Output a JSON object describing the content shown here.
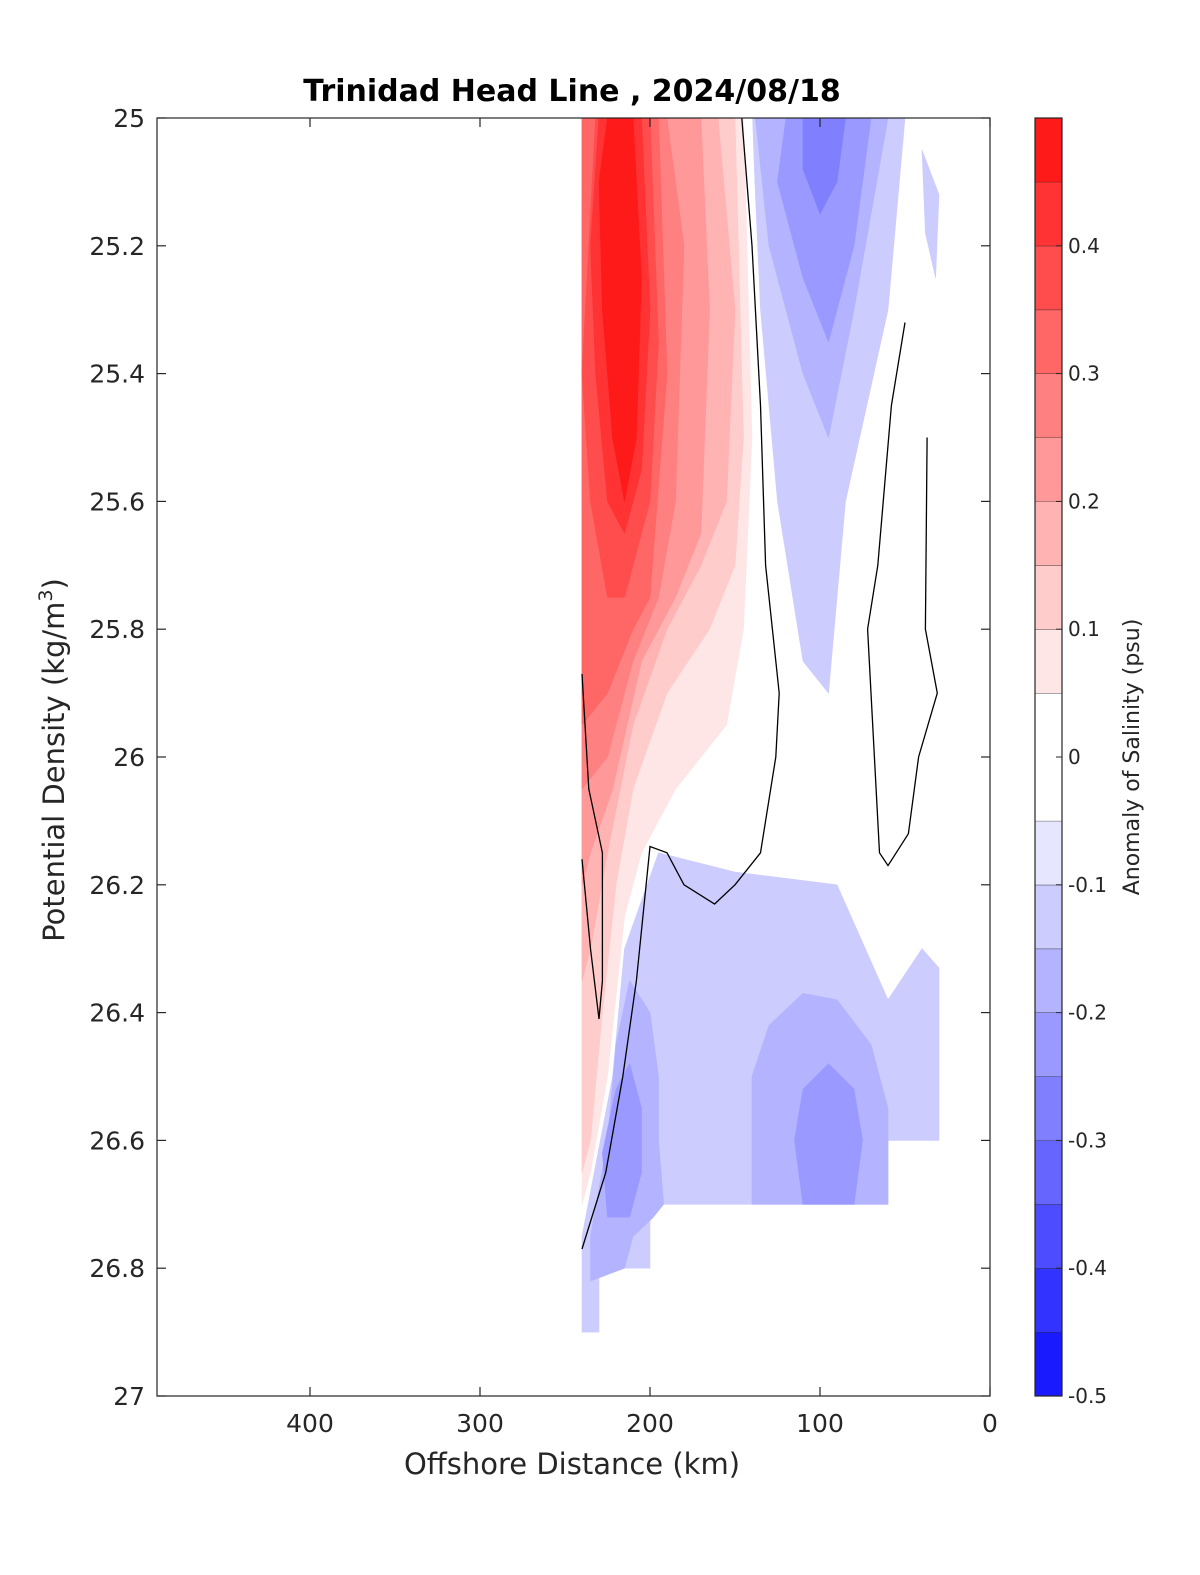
{
  "chart_data": {
    "type": "contour",
    "title": "Trinidad Head Line , 2024/08/18",
    "xlabel": "Offshore Distance (km)",
    "ylabel_main": "Potential Density (kg/m",
    "ylabel_sup": "3",
    "ylabel_close": ")",
    "xlim": [
      490,
      0
    ],
    "ylim": [
      25,
      27
    ],
    "xticks": [
      "400",
      "300",
      "200",
      "100",
      "0"
    ],
    "xtick_values": [
      400,
      300,
      200,
      100,
      0
    ],
    "yticks": [
      "25",
      "25.2",
      "25.4",
      "25.6",
      "25.8",
      "26",
      "26.2",
      "26.4",
      "26.6",
      "26.8",
      "27"
    ],
    "ytick_values": [
      25,
      25.2,
      25.4,
      25.6,
      25.8,
      26,
      26.2,
      26.4,
      26.6,
      26.8,
      27
    ],
    "colorbar": {
      "label": "Anomaly of Salinity (psu)",
      "range": [
        -0.5,
        0.5
      ],
      "ticks": [
        "0.4",
        "0.3",
        "0.2",
        "0.1",
        "0",
        "-0.1",
        "-0.2",
        "-0.3",
        "-0.4",
        "-0.5"
      ],
      "tick_values": [
        0.4,
        0.3,
        0.2,
        0.1,
        0,
        -0.1,
        -0.2,
        -0.3,
        -0.4,
        -0.5
      ],
      "levels": [
        -0.5,
        -0.45,
        -0.4,
        -0.35,
        -0.3,
        -0.25,
        -0.2,
        -0.15,
        -0.1,
        -0.05,
        0.05,
        0.1,
        0.15,
        0.2,
        0.25,
        0.3,
        0.35,
        0.4,
        0.45,
        0.5
      ],
      "colors": [
        "#0000ff",
        "#1a1aff",
        "#3333ff",
        "#4d4dff",
        "#6666ff",
        "#8080ff",
        "#9999ff",
        "#b3b3ff",
        "#ccccff",
        "#e6e6ff",
        "#ffffff",
        "#ffe6e6",
        "#ffcccc",
        "#ffb3b3",
        "#ff9999",
        "#ff8080",
        "#ff6666",
        "#ff4d4d",
        "#ff3333",
        "#ff1a1a",
        "#ff0000"
      ]
    },
    "regions": [
      {
        "value": -0.1,
        "points": [
          [
            240,
            26.9
          ],
          [
            230,
            26.9
          ],
          [
            230,
            26.8
          ],
          [
            210,
            26.8
          ],
          [
            200,
            26.8
          ],
          [
            200,
            26.7
          ],
          [
            100,
            26.7
          ],
          [
            60,
            26.7
          ],
          [
            60,
            26.6
          ],
          [
            30,
            26.6
          ],
          [
            30,
            26.33
          ],
          [
            40,
            26.3
          ],
          [
            60,
            26.38
          ],
          [
            90,
            26.2
          ],
          [
            150,
            26.18
          ],
          [
            195,
            26.15
          ],
          [
            215,
            26.3
          ],
          [
            222,
            26.5
          ],
          [
            240,
            26.75
          ]
        ]
      },
      {
        "value": -0.15,
        "points": [
          [
            235,
            26.82
          ],
          [
            215,
            26.8
          ],
          [
            210,
            26.75
          ],
          [
            198,
            26.72
          ],
          [
            192,
            26.7
          ],
          [
            195,
            26.6
          ],
          [
            195,
            26.5
          ],
          [
            200,
            26.4
          ],
          [
            212,
            26.35
          ],
          [
            220,
            26.45
          ],
          [
            225,
            26.6
          ],
          [
            235,
            26.75
          ]
        ]
      },
      {
        "value": -0.15,
        "points": [
          [
            140,
            26.7
          ],
          [
            80,
            26.7
          ],
          [
            60,
            26.7
          ],
          [
            60,
            26.55
          ],
          [
            70,
            26.45
          ],
          [
            90,
            26.38
          ],
          [
            110,
            26.37
          ],
          [
            130,
            26.42
          ],
          [
            140,
            26.5
          ]
        ]
      },
      {
        "value": -0.2,
        "points": [
          [
            225,
            26.72
          ],
          [
            212,
            26.72
          ],
          [
            205,
            26.65
          ],
          [
            205,
            26.55
          ],
          [
            212,
            26.48
          ],
          [
            220,
            26.52
          ],
          [
            228,
            26.62
          ]
        ]
      },
      {
        "value": -0.2,
        "points": [
          [
            110,
            26.7
          ],
          [
            80,
            26.7
          ],
          [
            75,
            26.6
          ],
          [
            80,
            26.52
          ],
          [
            95,
            26.48
          ],
          [
            110,
            26.52
          ],
          [
            115,
            26.6
          ]
        ]
      },
      {
        "value": -0.1,
        "points": [
          [
            140,
            25
          ],
          [
            100,
            25
          ],
          [
            50,
            25
          ],
          [
            60,
            25.3
          ],
          [
            85,
            25.6
          ],
          [
            95,
            25.9
          ],
          [
            110,
            25.85
          ],
          [
            125,
            25.6
          ],
          [
            135,
            25.3
          ]
        ]
      },
      {
        "value": -0.15,
        "points": [
          [
            138,
            25
          ],
          [
            90,
            25
          ],
          [
            60,
            25
          ],
          [
            80,
            25.3
          ],
          [
            95,
            25.5
          ],
          [
            110,
            25.4
          ],
          [
            130,
            25.2
          ]
        ]
      },
      {
        "value": -0.2,
        "points": [
          [
            120,
            25
          ],
          [
            70,
            25
          ],
          [
            80,
            25.2
          ],
          [
            95,
            25.35
          ],
          [
            110,
            25.25
          ],
          [
            125,
            25.1
          ]
        ]
      },
      {
        "value": -0.25,
        "points": [
          [
            110,
            25
          ],
          [
            85,
            25
          ],
          [
            90,
            25.1
          ],
          [
            100,
            25.15
          ],
          [
            110,
            25.08
          ]
        ]
      },
      {
        "value": -0.1,
        "points": [
          [
            40,
            25.05
          ],
          [
            30,
            25.12
          ],
          [
            32,
            25.25
          ],
          [
            38,
            25.18
          ]
        ]
      },
      {
        "value": 0.05,
        "points": [
          [
            240,
            25
          ],
          [
            140,
            25
          ],
          [
            135,
            25.4
          ],
          [
            140,
            25.8
          ],
          [
            150,
            26
          ],
          [
            170,
            26.05
          ],
          [
            190,
            26.1
          ],
          [
            210,
            26.2
          ],
          [
            220,
            26.35
          ],
          [
            235,
            26.6
          ],
          [
            240,
            26.7
          ]
        ]
      },
      {
        "value": 0.05,
        "points": [
          [
            60,
            25.8
          ],
          [
            55,
            25.85
          ],
          [
            58,
            25.9
          ],
          [
            65,
            25.85
          ]
        ]
      },
      {
        "value": 0.1,
        "points": [
          [
            240,
            25
          ],
          [
            145,
            25
          ],
          [
            140,
            25.5
          ],
          [
            145,
            25.8
          ],
          [
            155,
            25.95
          ],
          [
            185,
            26.05
          ],
          [
            205,
            26.15
          ],
          [
            215,
            26.25
          ],
          [
            225,
            26.5
          ],
          [
            235,
            26.65
          ],
          [
            240,
            26.7
          ]
        ]
      },
      {
        "value": 0.15,
        "points": [
          [
            240,
            25
          ],
          [
            150,
            25
          ],
          [
            145,
            25.5
          ],
          [
            150,
            25.7
          ],
          [
            165,
            25.8
          ],
          [
            190,
            25.9
          ],
          [
            210,
            26.05
          ],
          [
            220,
            26.2
          ],
          [
            228,
            26.4
          ],
          [
            235,
            26.6
          ],
          [
            240,
            26.65
          ]
        ]
      },
      {
        "value": 0.2,
        "points": [
          [
            240,
            25
          ],
          [
            160,
            25
          ],
          [
            150,
            25.3
          ],
          [
            155,
            25.6
          ],
          [
            170,
            25.7
          ],
          [
            190,
            25.8
          ],
          [
            210,
            25.95
          ],
          [
            225,
            26.15
          ],
          [
            235,
            26.3
          ],
          [
            240,
            26.35
          ]
        ]
      },
      {
        "value": 0.25,
        "points": [
          [
            240,
            25
          ],
          [
            170,
            25
          ],
          [
            165,
            25.3
          ],
          [
            170,
            25.65
          ],
          [
            185,
            25.75
          ],
          [
            205,
            25.85
          ],
          [
            222,
            26.05
          ],
          [
            235,
            26.15
          ],
          [
            240,
            26.2
          ]
        ]
      },
      {
        "value": 0.3,
        "points": [
          [
            240,
            25
          ],
          [
            190,
            25
          ],
          [
            180,
            25.2
          ],
          [
            185,
            25.6
          ],
          [
            195,
            25.75
          ],
          [
            210,
            25.85
          ],
          [
            225,
            26
          ],
          [
            240,
            26.05
          ]
        ]
      },
      {
        "value": 0.35,
        "points": [
          [
            240,
            25
          ],
          [
            195,
            25
          ],
          [
            190,
            25.4
          ],
          [
            200,
            25.75
          ],
          [
            210,
            25.8
          ],
          [
            225,
            25.9
          ],
          [
            240,
            25.95
          ]
        ]
      },
      {
        "value": 0.4,
        "points": [
          [
            232,
            25
          ],
          [
            200,
            25
          ],
          [
            195,
            25.35
          ],
          [
            200,
            25.6
          ],
          [
            215,
            25.75
          ],
          [
            225,
            25.75
          ],
          [
            235,
            25.6
          ],
          [
            240,
            25.4
          ]
        ]
      },
      {
        "value": 0.45,
        "points": [
          [
            230,
            25
          ],
          [
            205,
            25
          ],
          [
            200,
            25.3
          ],
          [
            205,
            25.55
          ],
          [
            215,
            25.65
          ],
          [
            225,
            25.6
          ],
          [
            232,
            25.4
          ],
          [
            235,
            25.2
          ]
        ]
      },
      {
        "value": 0.5,
        "points": [
          [
            225,
            25
          ],
          [
            210,
            25
          ],
          [
            205,
            25.25
          ],
          [
            208,
            25.5
          ],
          [
            215,
            25.6
          ],
          [
            222,
            25.5
          ],
          [
            228,
            25.3
          ],
          [
            230,
            25.1
          ]
        ]
      }
    ],
    "zero_contours": [
      {
        "points": [
          [
            146,
            25
          ],
          [
            140,
            25.2
          ],
          [
            135,
            25.45
          ],
          [
            132,
            25.7
          ],
          [
            124,
            25.9
          ],
          [
            126,
            26
          ],
          [
            135,
            26.15
          ],
          [
            150,
            26.2
          ],
          [
            162,
            26.23
          ],
          [
            180,
            26.2
          ],
          [
            190,
            26.15
          ],
          [
            200,
            26.14
          ],
          [
            208,
            26.35
          ],
          [
            216,
            26.5
          ],
          [
            226,
            26.65
          ],
          [
            240,
            26.77
          ]
        ]
      },
      {
        "points": [
          [
            240,
            25.87
          ],
          [
            236,
            26.05
          ],
          [
            228,
            26.15
          ],
          [
            228,
            26.35
          ],
          [
            230,
            26.41
          ],
          [
            235,
            26.3
          ],
          [
            240,
            26.16
          ]
        ]
      },
      {
        "points": [
          [
            50,
            25.32
          ],
          [
            58,
            25.45
          ],
          [
            66,
            25.7
          ],
          [
            72,
            25.8
          ],
          [
            65,
            26.15
          ],
          [
            60,
            26.17
          ],
          [
            48,
            26.12
          ],
          [
            42,
            26
          ],
          [
            31,
            25.9
          ],
          [
            38,
            25.8
          ],
          [
            37,
            25.5
          ]
        ]
      }
    ]
  }
}
